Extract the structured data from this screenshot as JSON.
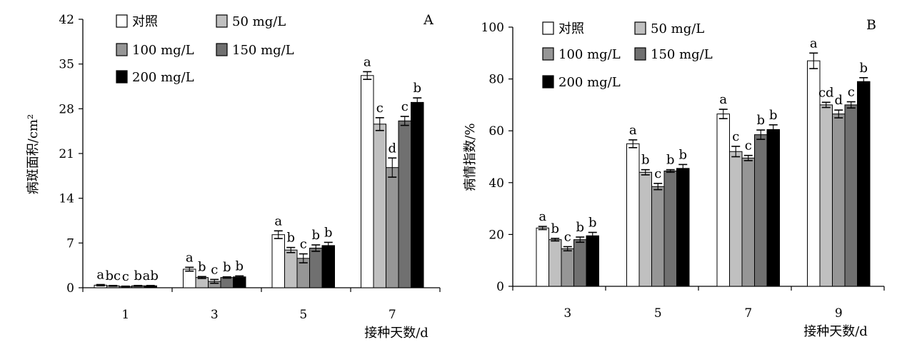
{
  "colors": {
    "对照": "#ffffff",
    "50 mg/L": "#c0c0c0",
    "100 mg/L": "#969696",
    "150 mg/L": "#707070",
    "200 mg/L": "#000000"
  },
  "chart_data": [
    {
      "type": "bar",
      "panel": "A",
      "xlabel": "接种天数/d",
      "ylabel": "病斑面积/cm²",
      "ylim": [
        0,
        42
      ],
      "yticks": [
        0,
        7,
        14,
        21,
        28,
        35,
        42
      ],
      "categories": [
        "1",
        "3",
        "5",
        "7"
      ],
      "legend_position": "top-left",
      "series": [
        {
          "name": "对照",
          "values": [
            0.4,
            2.9,
            8.3,
            33.2
          ],
          "errors": [
            0.1,
            0.3,
            0.6,
            0.6
          ],
          "labels": [
            "a",
            "a",
            "a",
            "a"
          ]
        },
        {
          "name": "50 mg/L",
          "values": [
            0.3,
            1.6,
            5.9,
            25.6
          ],
          "errors": [
            0.05,
            0.15,
            0.4,
            1.0
          ],
          "labels": [
            "bc",
            "b",
            "b",
            "c"
          ]
        },
        {
          "name": "100 mg/L",
          "values": [
            0.2,
            1.0,
            4.6,
            18.8
          ],
          "errors": [
            0.05,
            0.3,
            0.7,
            1.5
          ],
          "labels": [
            "c",
            "c",
            "c",
            "d"
          ]
        },
        {
          "name": "150 mg/L",
          "values": [
            0.3,
            1.6,
            6.2,
            26.1
          ],
          "errors": [
            0.05,
            0.1,
            0.5,
            0.7
          ],
          "labels": [
            "b",
            "b",
            "b",
            "c"
          ]
        },
        {
          "name": "200 mg/L",
          "values": [
            0.3,
            1.7,
            6.6,
            29.0
          ],
          "errors": [
            0.05,
            0.15,
            0.5,
            0.7
          ],
          "labels": [
            "ab",
            "b",
            "b",
            "b"
          ]
        }
      ]
    },
    {
      "type": "bar",
      "panel": "B",
      "xlabel": "接种天数/d",
      "ylabel": "病情指数/%",
      "ylim": [
        0,
        100
      ],
      "yticks": [
        0,
        20,
        40,
        60,
        80,
        100
      ],
      "categories": [
        "3",
        "5",
        "7",
        "9"
      ],
      "legend_position": "top-left",
      "series": [
        {
          "name": "对照",
          "values": [
            22.5,
            55.0,
            66.5,
            87.0
          ],
          "errors": [
            0.6,
            1.5,
            1.8,
            3.0
          ],
          "labels": [
            "a",
            "a",
            "a",
            "a"
          ]
        },
        {
          "name": "50 mg/L",
          "values": [
            18.0,
            44.0,
            52.0,
            70.0
          ],
          "errors": [
            0.5,
            1.0,
            2.0,
            1.0
          ],
          "labels": [
            "b",
            "b",
            "c",
            "cd"
          ]
        },
        {
          "name": "100 mg/L",
          "values": [
            14.5,
            38.5,
            49.5,
            66.5
          ],
          "errors": [
            0.8,
            1.2,
            1.0,
            1.5
          ],
          "labels": [
            "c",
            "c",
            "c",
            "d"
          ]
        },
        {
          "name": "150 mg/L",
          "values": [
            18.0,
            44.5,
            58.5,
            70.0
          ],
          "errors": [
            1.0,
            0.5,
            1.8,
            1.2
          ],
          "labels": [
            "b",
            "b",
            "b",
            "c"
          ]
        },
        {
          "name": "200 mg/L",
          "values": [
            19.5,
            45.5,
            60.5,
            79.0
          ],
          "errors": [
            1.3,
            1.5,
            1.8,
            1.5
          ],
          "labels": [
            "b",
            "b",
            "b",
            "b"
          ]
        }
      ]
    }
  ]
}
